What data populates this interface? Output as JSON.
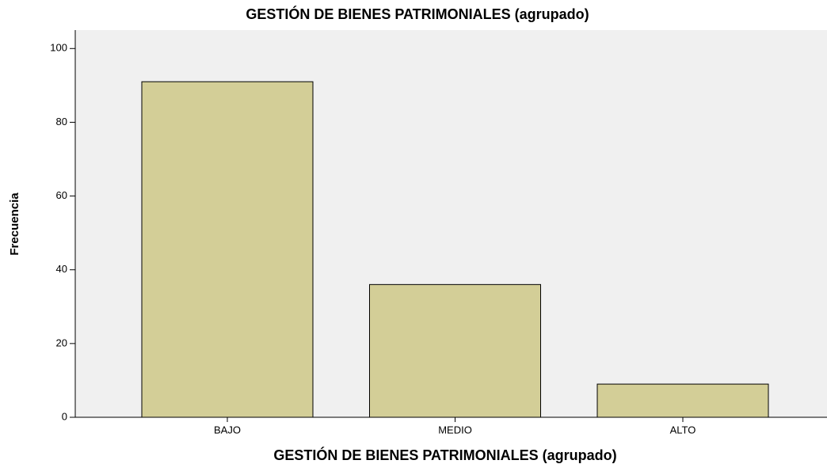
{
  "chart_data": {
    "type": "bar",
    "title": "GESTIÓN DE BIENES PATRIMONIALES (agrupado)",
    "x_label": "GESTIÓN DE BIENES PATRIMONIALES (agrupado)",
    "y_label": "Frecuencia",
    "categories": [
      "BAJO",
      "MEDIO",
      "ALTO"
    ],
    "values": [
      91,
      36,
      9
    ],
    "color": "#d3ce97",
    "ylim": [
      0,
      105
    ],
    "yticks": [
      0,
      20,
      40,
      60,
      80,
      100
    ],
    "grid": false
  }
}
